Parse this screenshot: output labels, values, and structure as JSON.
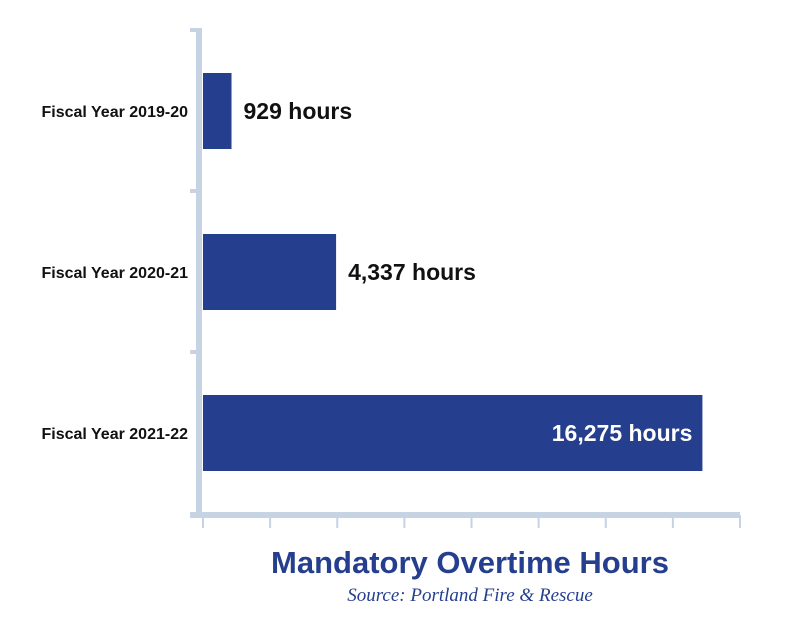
{
  "colors": {
    "bar": "#253f8e",
    "axis": "#c5d3e3",
    "category_text": "#111111",
    "value_text_outside": "#111111",
    "value_text_inside": "#ffffff",
    "title": "#253f8e",
    "source": "#253f8e"
  },
  "chart_data": {
    "type": "bar",
    "orientation": "horizontal",
    "title": "Mandatory Overtime Hours",
    "subtitle": "Source: Portland Fire & Rescue",
    "categories": [
      "Fiscal Year 2019-20",
      "Fiscal Year 2020-21",
      "Fiscal Year 2021-22"
    ],
    "values": [
      929,
      4337,
      16275
    ],
    "value_labels": [
      "929 hours",
      "4,337 hours",
      "16,275 hours"
    ],
    "xlabel": "",
    "ylabel": "",
    "xlim": [
      0,
      17500
    ],
    "x_tick_count": 8,
    "grid": false,
    "legend": "none"
  }
}
